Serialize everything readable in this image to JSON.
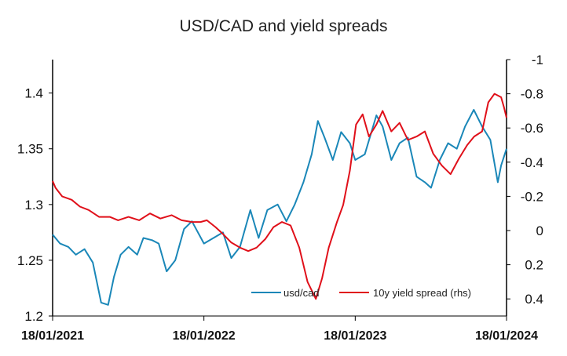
{
  "chart_data": {
    "type": "line",
    "title": "USD/CAD and yield spreads",
    "x_ticks": [
      "18/01/2021",
      "18/01/2022",
      "18/01/2023",
      "18/01/2024"
    ],
    "xlim": [
      "2021-01-18",
      "2024-01-18"
    ],
    "y_left": {
      "ticks": [
        "1.2",
        "1.25",
        "1.3",
        "1.35",
        "1.4"
      ],
      "min": 1.2,
      "max": 1.43
    },
    "y_right": {
      "ticks": [
        "-1",
        "-0.8",
        "-0.6",
        "-0.4",
        "-0.2",
        "0",
        "0.2",
        "0.4"
      ],
      "min": -1,
      "max": 0.5,
      "inverted": true
    },
    "legend_position": "bottom-right",
    "grid": false,
    "series": [
      {
        "name": "usd/cad",
        "axis": "left",
        "color": "#1a87b8",
        "points": [
          [
            "2021-01-18",
            1.273
          ],
          [
            "2021-02-05",
            1.265
          ],
          [
            "2021-02-25",
            1.262
          ],
          [
            "2021-03-15",
            1.255
          ],
          [
            "2021-04-05",
            1.26
          ],
          [
            "2021-04-25",
            1.248
          ],
          [
            "2021-05-15",
            1.212
          ],
          [
            "2021-06-01",
            1.21
          ],
          [
            "2021-06-15",
            1.235
          ],
          [
            "2021-07-01",
            1.255
          ],
          [
            "2021-07-20",
            1.262
          ],
          [
            "2021-08-10",
            1.255
          ],
          [
            "2021-08-25",
            1.27
          ],
          [
            "2021-09-15",
            1.268
          ],
          [
            "2021-10-01",
            1.265
          ],
          [
            "2021-10-20",
            1.24
          ],
          [
            "2021-11-10",
            1.25
          ],
          [
            "2021-12-01",
            1.278
          ],
          [
            "2021-12-20",
            1.285
          ],
          [
            "2022-01-18",
            1.265
          ],
          [
            "2022-02-10",
            1.27
          ],
          [
            "2022-03-05",
            1.275
          ],
          [
            "2022-03-25",
            1.252
          ],
          [
            "2022-04-15",
            1.262
          ],
          [
            "2022-05-10",
            1.295
          ],
          [
            "2022-05-30",
            1.27
          ],
          [
            "2022-06-20",
            1.295
          ],
          [
            "2022-07-15",
            1.3
          ],
          [
            "2022-08-05",
            1.285
          ],
          [
            "2022-08-25",
            1.3
          ],
          [
            "2022-09-15",
            1.32
          ],
          [
            "2022-10-05",
            1.345
          ],
          [
            "2022-10-20",
            1.375
          ],
          [
            "2022-11-05",
            1.36
          ],
          [
            "2022-11-25",
            1.34
          ],
          [
            "2022-12-15",
            1.365
          ],
          [
            "2023-01-05",
            1.355
          ],
          [
            "2023-01-18",
            1.34
          ],
          [
            "2023-02-10",
            1.345
          ],
          [
            "2023-03-10",
            1.38
          ],
          [
            "2023-03-25",
            1.37
          ],
          [
            "2023-04-15",
            1.34
          ],
          [
            "2023-05-05",
            1.355
          ],
          [
            "2023-05-25",
            1.36
          ],
          [
            "2023-06-15",
            1.325
          ],
          [
            "2023-07-05",
            1.32
          ],
          [
            "2023-07-20",
            1.315
          ],
          [
            "2023-08-10",
            1.34
          ],
          [
            "2023-08-30",
            1.355
          ],
          [
            "2023-09-20",
            1.35
          ],
          [
            "2023-10-10",
            1.37
          ],
          [
            "2023-10-31",
            1.385
          ],
          [
            "2023-11-20",
            1.37
          ],
          [
            "2023-12-10",
            1.358
          ],
          [
            "2023-12-28",
            1.32
          ],
          [
            "2024-01-05",
            1.335
          ],
          [
            "2024-01-18",
            1.35
          ]
        ]
      },
      {
        "name": "10y yield spread (rhs)",
        "axis": "right",
        "color": "#e0101a",
        "points": [
          [
            "2021-01-18",
            -0.29
          ],
          [
            "2021-01-25",
            -0.25
          ],
          [
            "2021-02-10",
            -0.2
          ],
          [
            "2021-03-05",
            -0.18
          ],
          [
            "2021-03-25",
            -0.14
          ],
          [
            "2021-04-15",
            -0.12
          ],
          [
            "2021-05-10",
            -0.08
          ],
          [
            "2021-06-05",
            -0.08
          ],
          [
            "2021-06-25",
            -0.06
          ],
          [
            "2021-07-20",
            -0.08
          ],
          [
            "2021-08-15",
            -0.06
          ],
          [
            "2021-09-10",
            -0.1
          ],
          [
            "2021-10-05",
            -0.07
          ],
          [
            "2021-11-01",
            -0.09
          ],
          [
            "2021-11-25",
            -0.06
          ],
          [
            "2021-12-20",
            -0.05
          ],
          [
            "2022-01-10",
            -0.05
          ],
          [
            "2022-01-25",
            -0.06
          ],
          [
            "2022-02-15",
            -0.02
          ],
          [
            "2022-03-05",
            0.02
          ],
          [
            "2022-03-25",
            0.07
          ],
          [
            "2022-04-15",
            0.1
          ],
          [
            "2022-05-05",
            0.12
          ],
          [
            "2022-05-25",
            0.1
          ],
          [
            "2022-06-15",
            0.05
          ],
          [
            "2022-07-05",
            -0.02
          ],
          [
            "2022-07-25",
            -0.05
          ],
          [
            "2022-08-15",
            -0.03
          ],
          [
            "2022-09-05",
            0.1
          ],
          [
            "2022-09-25",
            0.3
          ],
          [
            "2022-10-15",
            0.4
          ],
          [
            "2022-10-30",
            0.28
          ],
          [
            "2022-11-15",
            0.1
          ],
          [
            "2022-12-05",
            -0.05
          ],
          [
            "2022-12-20",
            -0.15
          ],
          [
            "2023-01-05",
            -0.35
          ],
          [
            "2023-01-20",
            -0.62
          ],
          [
            "2023-02-05",
            -0.68
          ],
          [
            "2023-02-20",
            -0.55
          ],
          [
            "2023-03-10",
            -0.62
          ],
          [
            "2023-03-25",
            -0.7
          ],
          [
            "2023-04-15",
            -0.58
          ],
          [
            "2023-05-05",
            -0.63
          ],
          [
            "2023-05-25",
            -0.53
          ],
          [
            "2023-06-15",
            -0.55
          ],
          [
            "2023-07-05",
            -0.58
          ],
          [
            "2023-07-25",
            -0.45
          ],
          [
            "2023-08-15",
            -0.38
          ],
          [
            "2023-09-05",
            -0.33
          ],
          [
            "2023-09-25",
            -0.42
          ],
          [
            "2023-10-15",
            -0.5
          ],
          [
            "2023-11-01",
            -0.55
          ],
          [
            "2023-11-20",
            -0.58
          ],
          [
            "2023-12-05",
            -0.75
          ],
          [
            "2023-12-20",
            -0.8
          ],
          [
            "2024-01-05",
            -0.78
          ],
          [
            "2024-01-12",
            -0.72
          ],
          [
            "2024-01-18",
            -0.66
          ]
        ]
      }
    ]
  }
}
